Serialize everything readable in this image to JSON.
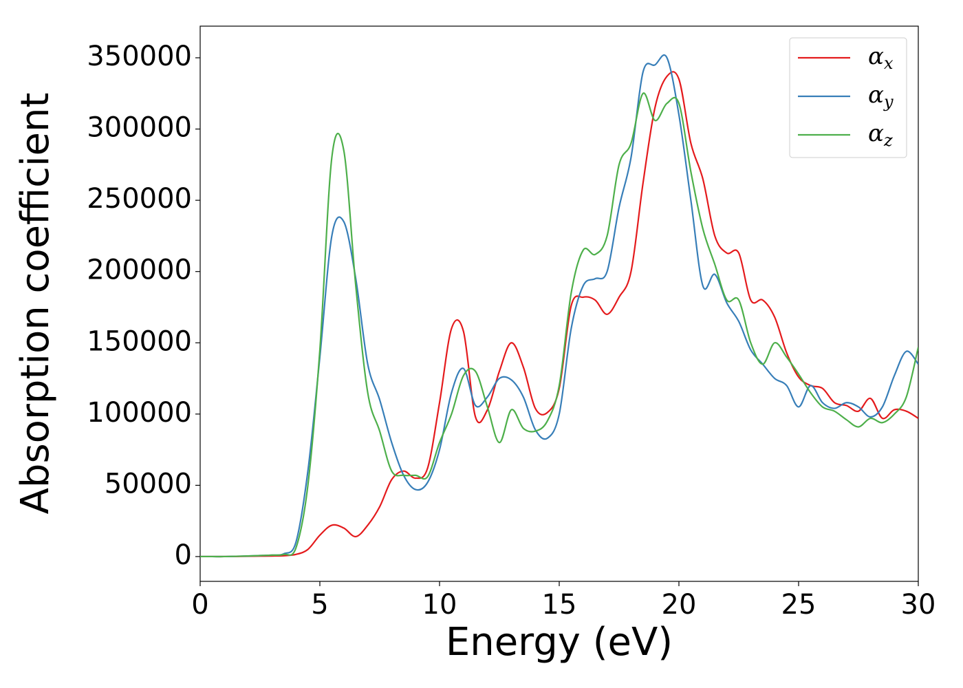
{
  "chart_data": {
    "type": "line",
    "xlabel": "Energy (eV)",
    "ylabel": "Absorption coefficient",
    "xlim": [
      0,
      30
    ],
    "ylim": [
      -17400,
      372200
    ],
    "xticks": [
      0,
      5,
      10,
      15,
      20,
      25,
      30
    ],
    "yticks": [
      0,
      50000,
      100000,
      150000,
      200000,
      250000,
      300000,
      350000
    ],
    "legend": "upper right",
    "grid": false,
    "x": [
      0,
      0.5,
      1,
      1.5,
      2,
      2.5,
      3,
      3.5,
      4,
      4.5,
      5,
      5.5,
      6,
      6.5,
      7,
      7.5,
      8,
      8.5,
      9,
      9.5,
      10,
      10.5,
      11,
      11.5,
      12,
      12.5,
      13,
      13.5,
      14,
      14.5,
      15,
      15.5,
      16,
      16.5,
      17,
      17.5,
      18,
      18.5,
      19,
      19.5,
      20,
      20.5,
      21,
      21.5,
      22,
      22.5,
      23,
      23.5,
      24,
      24.5,
      25,
      25.5,
      26,
      26.5,
      27,
      27.5,
      28,
      28.5,
      29,
      29.5,
      30
    ],
    "series": [
      {
        "name": "αx",
        "color": "#e41a1c",
        "values": [
          0,
          0,
          0,
          100,
          200,
          300,
          400,
          600,
          1500,
          5000,
          15000,
          22000,
          20000,
          14000,
          22000,
          35000,
          54000,
          60000,
          55000,
          62000,
          108000,
          160000,
          158000,
          98000,
          103000,
          130000,
          150000,
          133000,
          104000,
          101000,
          118000,
          176000,
          182000,
          180000,
          170000,
          182000,
          200000,
          262000,
          315000,
          337000,
          335000,
          290000,
          265000,
          225000,
          213000,
          213000,
          180000,
          180000,
          168000,
          143000,
          126000,
          120000,
          118000,
          108000,
          106000,
          102000,
          111000,
          97000,
          103000,
          102000,
          97000
        ]
      },
      {
        "name": "αy",
        "color": "#377eb8",
        "values": [
          0,
          0,
          0,
          200,
          400,
          700,
          1000,
          2000,
          10000,
          60000,
          140000,
          225000,
          235000,
          195000,
          135000,
          110000,
          80000,
          57000,
          47000,
          52000,
          75000,
          115000,
          132000,
          106000,
          112000,
          125000,
          124000,
          112000,
          89000,
          83000,
          100000,
          160000,
          190000,
          195000,
          200000,
          245000,
          280000,
          340000,
          345000,
          350000,
          310000,
          250000,
          190000,
          198000,
          178000,
          165000,
          145000,
          135000,
          125000,
          120000,
          105000,
          120000,
          108000,
          104000,
          108000,
          105000,
          98000,
          105000,
          127000,
          144000,
          135000
        ]
      },
      {
        "name": "αz",
        "color": "#4daf4a",
        "values": [
          0,
          0,
          0,
          200,
          400,
          700,
          1000,
          1500,
          6000,
          50000,
          145000,
          280000,
          285000,
          190000,
          115000,
          88000,
          60000,
          57000,
          57000,
          56000,
          80000,
          100000,
          127000,
          130000,
          105000,
          80000,
          103000,
          90000,
          88000,
          95000,
          120000,
          185000,
          215000,
          212000,
          225000,
          275000,
          290000,
          325000,
          306000,
          318000,
          318000,
          270000,
          230000,
          205000,
          180000,
          180000,
          150000,
          135000,
          150000,
          140000,
          128000,
          115000,
          105000,
          102000,
          96000,
          91000,
          97000,
          94000,
          100000,
          112000,
          147000
        ]
      }
    ]
  }
}
